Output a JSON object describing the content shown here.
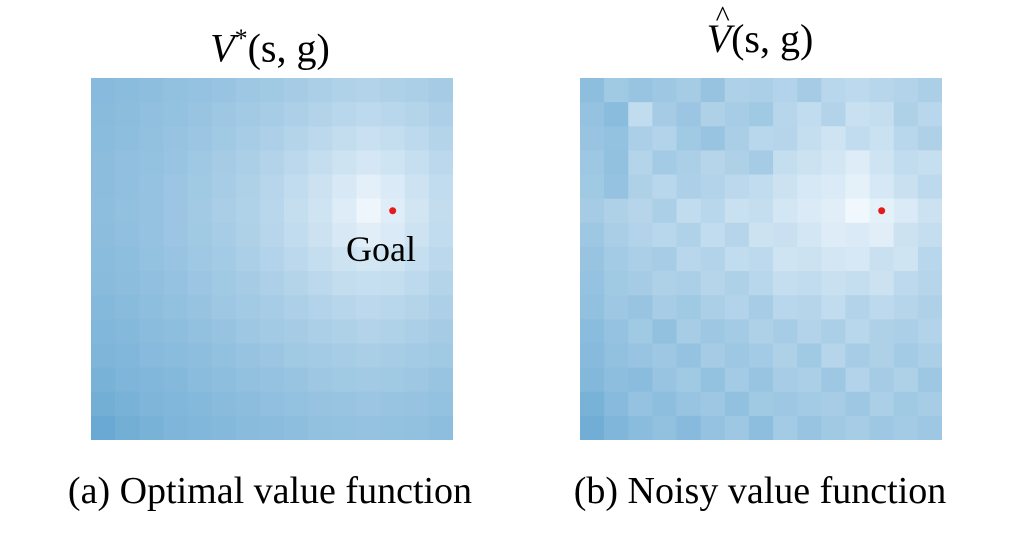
{
  "colors": {
    "min": "#4292c6",
    "max": "#f7fbff",
    "goal_marker": "#e41a1c"
  },
  "chart_data": [
    {
      "type": "heatmap",
      "title_symbol": "V",
      "title_superscript": "*",
      "title_args": "(s, g)",
      "caption": "(a) Optimal value function",
      "grid": [
        15,
        15
      ],
      "goal_cell": [
        12,
        5
      ],
      "goal_label": "Goal",
      "colormap": "Blues",
      "values": [
        [
          0.38,
          0.4,
          0.42,
          0.44,
          0.46,
          0.48,
          0.5,
          0.52,
          0.55,
          0.58,
          0.61,
          0.62,
          0.6,
          0.58,
          0.55
        ],
        [
          0.39,
          0.41,
          0.43,
          0.45,
          0.48,
          0.5,
          0.53,
          0.56,
          0.59,
          0.62,
          0.66,
          0.68,
          0.66,
          0.63,
          0.59
        ],
        [
          0.4,
          0.42,
          0.44,
          0.47,
          0.49,
          0.52,
          0.56,
          0.59,
          0.63,
          0.67,
          0.71,
          0.74,
          0.72,
          0.68,
          0.63
        ],
        [
          0.41,
          0.43,
          0.45,
          0.48,
          0.51,
          0.55,
          0.58,
          0.62,
          0.67,
          0.72,
          0.77,
          0.81,
          0.78,
          0.73,
          0.67
        ],
        [
          0.41,
          0.43,
          0.46,
          0.49,
          0.52,
          0.56,
          0.6,
          0.65,
          0.7,
          0.76,
          0.83,
          0.89,
          0.84,
          0.77,
          0.7
        ],
        [
          0.42,
          0.44,
          0.46,
          0.49,
          0.53,
          0.57,
          0.61,
          0.66,
          0.72,
          0.78,
          0.86,
          0.95,
          0.87,
          0.79,
          0.71
        ],
        [
          0.41,
          0.43,
          0.46,
          0.49,
          0.52,
          0.56,
          0.6,
          0.65,
          0.7,
          0.76,
          0.83,
          0.88,
          0.84,
          0.77,
          0.7
        ],
        [
          0.4,
          0.42,
          0.45,
          0.48,
          0.51,
          0.54,
          0.58,
          0.62,
          0.67,
          0.72,
          0.77,
          0.8,
          0.78,
          0.73,
          0.67
        ],
        [
          0.39,
          0.41,
          0.43,
          0.46,
          0.49,
          0.52,
          0.55,
          0.59,
          0.63,
          0.67,
          0.71,
          0.73,
          0.72,
          0.68,
          0.63
        ],
        [
          0.37,
          0.39,
          0.42,
          0.44,
          0.47,
          0.5,
          0.53,
          0.56,
          0.59,
          0.62,
          0.65,
          0.67,
          0.66,
          0.63,
          0.59
        ],
        [
          0.35,
          0.37,
          0.4,
          0.42,
          0.44,
          0.47,
          0.5,
          0.53,
          0.55,
          0.58,
          0.6,
          0.62,
          0.61,
          0.58,
          0.55
        ],
        [
          0.33,
          0.35,
          0.38,
          0.4,
          0.42,
          0.44,
          0.47,
          0.49,
          0.52,
          0.54,
          0.56,
          0.57,
          0.56,
          0.54,
          0.52
        ],
        [
          0.3,
          0.33,
          0.35,
          0.37,
          0.4,
          0.42,
          0.44,
          0.46,
          0.48,
          0.5,
          0.52,
          0.53,
          0.52,
          0.5,
          0.48
        ],
        [
          0.27,
          0.3,
          0.33,
          0.35,
          0.37,
          0.39,
          0.41,
          0.43,
          0.45,
          0.47,
          0.48,
          0.49,
          0.48,
          0.47,
          0.45
        ],
        [
          0.22,
          0.27,
          0.3,
          0.33,
          0.35,
          0.37,
          0.39,
          0.4,
          0.42,
          0.44,
          0.45,
          0.46,
          0.45,
          0.44,
          0.42
        ]
      ]
    },
    {
      "type": "heatmap",
      "title_symbol": "V",
      "title_accent": "^",
      "title_args": "(s, g)",
      "caption": "(b) Noisy value function",
      "grid": [
        15,
        15
      ],
      "goal_cell": [
        12,
        5
      ],
      "colormap": "Blues",
      "values": [
        [
          0.42,
          0.52,
          0.48,
          0.5,
          0.55,
          0.47,
          0.6,
          0.58,
          0.62,
          0.55,
          0.66,
          0.68,
          0.65,
          0.62,
          0.58
        ],
        [
          0.46,
          0.4,
          0.7,
          0.55,
          0.49,
          0.6,
          0.56,
          0.52,
          0.65,
          0.7,
          0.62,
          0.74,
          0.72,
          0.6,
          0.66
        ],
        [
          0.48,
          0.45,
          0.58,
          0.62,
          0.52,
          0.48,
          0.57,
          0.66,
          0.64,
          0.72,
          0.78,
          0.7,
          0.75,
          0.66,
          0.6
        ],
        [
          0.5,
          0.44,
          0.63,
          0.54,
          0.58,
          0.64,
          0.6,
          0.55,
          0.72,
          0.76,
          0.8,
          0.86,
          0.78,
          0.7,
          0.73
        ],
        [
          0.52,
          0.46,
          0.6,
          0.66,
          0.59,
          0.62,
          0.67,
          0.7,
          0.76,
          0.82,
          0.84,
          0.9,
          0.82,
          0.74,
          0.68
        ],
        [
          0.55,
          0.6,
          0.64,
          0.58,
          0.7,
          0.66,
          0.74,
          0.72,
          0.8,
          0.84,
          0.88,
          0.96,
          0.9,
          0.84,
          0.76
        ],
        [
          0.5,
          0.57,
          0.62,
          0.66,
          0.61,
          0.7,
          0.64,
          0.76,
          0.74,
          0.8,
          0.86,
          0.84,
          0.88,
          0.76,
          0.72
        ],
        [
          0.48,
          0.54,
          0.58,
          0.56,
          0.66,
          0.62,
          0.7,
          0.68,
          0.78,
          0.76,
          0.8,
          0.82,
          0.74,
          0.78,
          0.66
        ],
        [
          0.46,
          0.52,
          0.55,
          0.6,
          0.58,
          0.64,
          0.6,
          0.66,
          0.72,
          0.7,
          0.74,
          0.72,
          0.76,
          0.68,
          0.64
        ],
        [
          0.44,
          0.5,
          0.48,
          0.56,
          0.52,
          0.58,
          0.62,
          0.56,
          0.66,
          0.64,
          0.7,
          0.62,
          0.68,
          0.64,
          0.6
        ],
        [
          0.4,
          0.46,
          0.52,
          0.44,
          0.56,
          0.5,
          0.54,
          0.6,
          0.56,
          0.62,
          0.58,
          0.66,
          0.6,
          0.58,
          0.62
        ],
        [
          0.38,
          0.44,
          0.48,
          0.5,
          0.46,
          0.55,
          0.5,
          0.54,
          0.6,
          0.52,
          0.64,
          0.56,
          0.6,
          0.54,
          0.58
        ],
        [
          0.36,
          0.42,
          0.4,
          0.48,
          0.52,
          0.45,
          0.54,
          0.48,
          0.56,
          0.58,
          0.5,
          0.62,
          0.55,
          0.6,
          0.5
        ],
        [
          0.3,
          0.38,
          0.46,
          0.42,
          0.48,
          0.5,
          0.44,
          0.52,
          0.5,
          0.54,
          0.56,
          0.5,
          0.58,
          0.52,
          0.56
        ],
        [
          0.26,
          0.34,
          0.4,
          0.44,
          0.38,
          0.46,
          0.5,
          0.42,
          0.54,
          0.48,
          0.52,
          0.56,
          0.5,
          0.54,
          0.5
        ]
      ]
    }
  ]
}
